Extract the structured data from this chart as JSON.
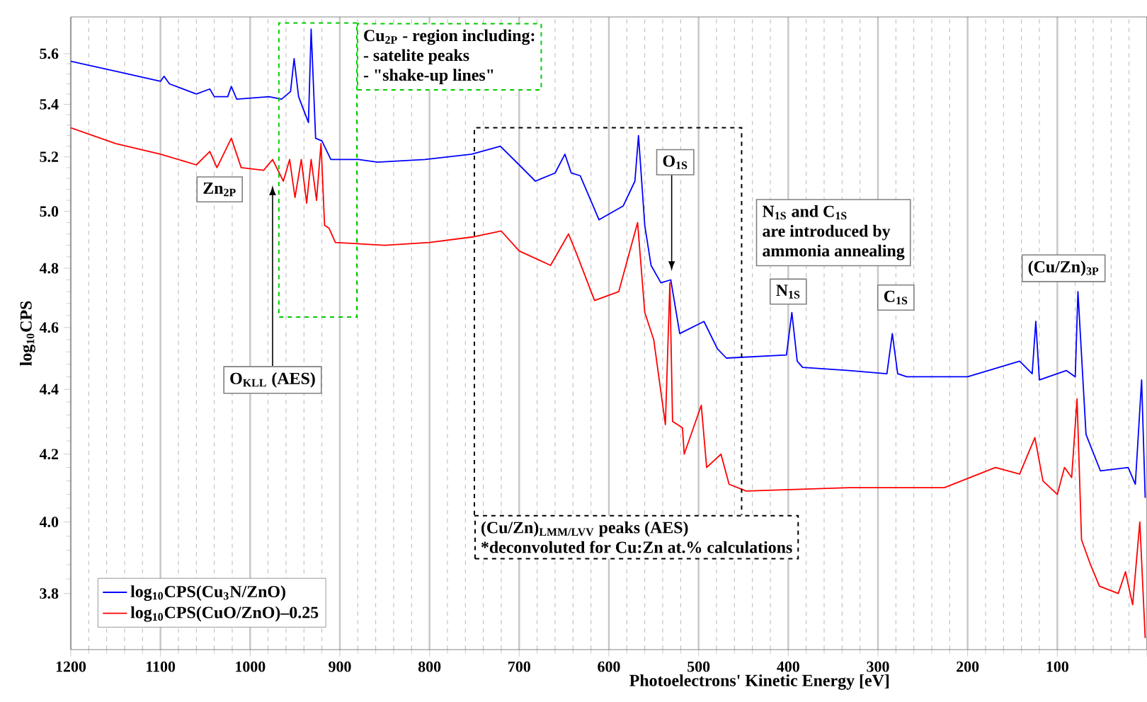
{
  "chart_data": {
    "type": "line",
    "xlabel": "Photoelectrons' Kinetic Energy [eV]",
    "ylabel": "log$_{10}$CPS",
    "xlim": [
      1200,
      0
    ],
    "xticks": [
      1200,
      1100,
      1000,
      900,
      800,
      700,
      600,
      500,
      400,
      300,
      200,
      100,
      {
        "value": 0,
        "label": null
      }
    ],
    "ylim": [
      3.65,
      5.75
    ],
    "yticks": [
      3.8,
      {
        "value": 4.0,
        "label": "4.0"
      },
      4.2,
      4.4,
      4.6,
      4.8,
      {
        "value": 5.0,
        "label": "5.0"
      },
      5.2,
      5.4,
      5.6
    ],
    "log": "y",
    "grid": "x",
    "legend": "bottom left",
    "marker": "none",
    "line_style": "solid",
    "annotations": [
      "Cu$_{2P}$ - region including:",
      "- satelite peaks",
      "- \"shake-up lines\"",
      "Zn$_{2P}$",
      "O$_{KLL}$ (AES)",
      "O$_{1S}$",
      "N$_{1S}$ and C$_{1S}$",
      "are introduced by",
      "ammonia annealing",
      "N$_{1S}$",
      "C$_{1S}$",
      "(Cu/Zn)$_{3P}$",
      "(Cu/Zn)$_{LMM/LVV}$ peaks (AES)",
      "*deconvoluted for Cu:Zn at.% calculations"
    ],
    "series": [
      {
        "name": "log$_{10}$CPS(Cu$_{3}$N/ZnO)",
        "color": "#0000ff",
        "x": [
          1200,
          1150,
          1100,
          1096,
          1090,
          1060,
          1045,
          1040,
          1025,
          1021,
          1015,
          979,
          965,
          955,
          951,
          946,
          935,
          932,
          927,
          920,
          910,
          879,
          858,
          805,
          753,
          721,
          700,
          682,
          660,
          649,
          642,
          632,
          611,
          584,
          571,
          567,
          560,
          553,
          542,
          531,
          521,
          494,
          479,
          469,
          402,
          396,
          390,
          384,
          332,
          290,
          284,
          278,
          268,
          200,
          142,
          128,
          124,
          120,
          90,
          80,
          77,
          68,
          52,
          21,
          13,
          6,
          2
        ],
        "values": [
          5.57,
          5.53,
          5.49,
          5.51,
          5.48,
          5.44,
          5.46,
          5.43,
          5.43,
          5.47,
          5.42,
          5.43,
          5.42,
          5.45,
          5.58,
          5.43,
          5.33,
          5.7,
          5.27,
          5.26,
          5.19,
          5.19,
          5.18,
          5.19,
          5.21,
          5.24,
          5.17,
          5.11,
          5.14,
          5.21,
          5.14,
          5.13,
          4.97,
          5.02,
          5.11,
          5.28,
          4.95,
          4.81,
          4.75,
          4.76,
          4.58,
          4.62,
          4.53,
          4.5,
          4.51,
          4.65,
          4.49,
          4.47,
          4.46,
          4.45,
          4.58,
          4.45,
          4.44,
          4.44,
          4.49,
          4.45,
          4.62,
          4.43,
          4.46,
          4.44,
          4.72,
          4.26,
          4.15,
          4.16,
          4.11,
          4.43,
          4.07
        ]
      },
      {
        "name": "log$_{10}$CPS(CuO/ZnO)–0.25",
        "color": "#ff0000",
        "x": [
          1200,
          1150,
          1100,
          1060,
          1045,
          1037,
          1021,
          1010,
          985,
          975,
          963,
          956,
          950,
          943,
          937,
          932,
          926,
          921,
          917,
          912,
          905,
          850,
          800,
          750,
          720,
          700,
          665,
          645,
          636,
          616,
          589,
          568,
          560,
          550,
          537,
          532,
          529,
          518,
          516,
          497,
          491,
          475,
          466,
          447,
          332,
          226,
          169,
          142,
          125,
          116,
          100,
          92,
          84,
          78,
          73,
          63,
          53,
          32,
          24,
          16,
          8,
          2
        ],
        "values": [
          5.31,
          5.25,
          5.21,
          5.17,
          5.22,
          5.16,
          5.27,
          5.16,
          5.15,
          5.19,
          5.11,
          5.19,
          5.05,
          5.19,
          5.03,
          5.19,
          5.04,
          5.25,
          4.95,
          4.94,
          4.89,
          4.88,
          4.89,
          4.91,
          4.93,
          4.86,
          4.81,
          4.92,
          4.85,
          4.69,
          4.72,
          4.96,
          4.65,
          4.56,
          4.29,
          4.75,
          4.3,
          4.28,
          4.2,
          4.35,
          4.16,
          4.2,
          4.11,
          4.09,
          4.1,
          4.1,
          4.16,
          4.14,
          4.25,
          4.12,
          4.08,
          4.16,
          4.13,
          4.37,
          3.95,
          3.88,
          3.82,
          3.8,
          3.86,
          3.77,
          4.0,
          3.68
        ]
      }
    ]
  }
}
